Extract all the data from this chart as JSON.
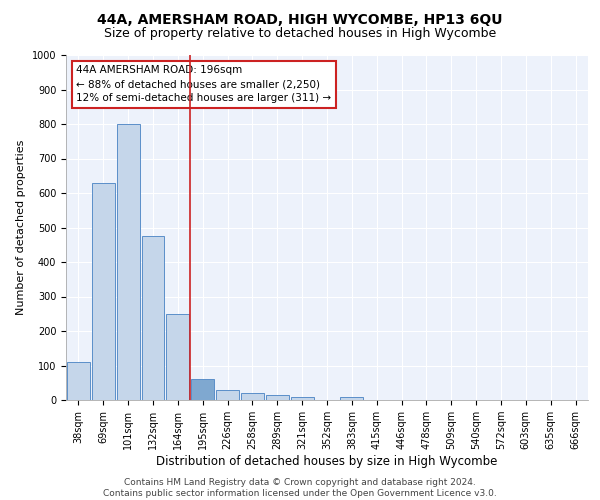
{
  "title": "44A, AMERSHAM ROAD, HIGH WYCOMBE, HP13 6QU",
  "subtitle": "Size of property relative to detached houses in High Wycombe",
  "xlabel": "Distribution of detached houses by size in High Wycombe",
  "ylabel": "Number of detached properties",
  "bar_labels": [
    "38sqm",
    "69sqm",
    "101sqm",
    "132sqm",
    "164sqm",
    "195sqm",
    "226sqm",
    "258sqm",
    "289sqm",
    "321sqm",
    "352sqm",
    "383sqm",
    "415sqm",
    "446sqm",
    "478sqm",
    "509sqm",
    "540sqm",
    "572sqm",
    "603sqm",
    "635sqm",
    "666sqm"
  ],
  "bar_values": [
    110,
    630,
    800,
    475,
    250,
    60,
    28,
    20,
    15,
    10,
    0,
    10,
    0,
    0,
    0,
    0,
    0,
    0,
    0,
    0,
    0
  ],
  "bar_color": "#c5d6ea",
  "bar_edge_color": "#5b8fc9",
  "highlighted_bar_idx": 5,
  "highlighted_bar_color": "#7fa8d0",
  "highlighted_bar_edge_color": "#5b8fc9",
  "background_color": "#edf2fb",
  "grid_color": "#ffffff",
  "property_sqm": "196sqm",
  "property_label": "44A AMERSHAM ROAD: 196sqm",
  "annotation_line1": "← 88% of detached houses are smaller (2,250)",
  "annotation_line2": "12% of semi-detached houses are larger (311) →",
  "annotation_box_color": "#ffffff",
  "annotation_box_edge_color": "#cc2222",
  "vline_color": "#cc2222",
  "vline_x": 5,
  "ylim": [
    0,
    1000
  ],
  "yticks": [
    0,
    100,
    200,
    300,
    400,
    500,
    600,
    700,
    800,
    900,
    1000
  ],
  "footer_line1": "Contains HM Land Registry data © Crown copyright and database right 2024.",
  "footer_line2": "Contains public sector information licensed under the Open Government Licence v3.0.",
  "title_fontsize": 10,
  "subtitle_fontsize": 9,
  "xlabel_fontsize": 8.5,
  "ylabel_fontsize": 8,
  "tick_fontsize": 7,
  "footer_fontsize": 6.5,
  "annotation_fontsize": 7.5
}
